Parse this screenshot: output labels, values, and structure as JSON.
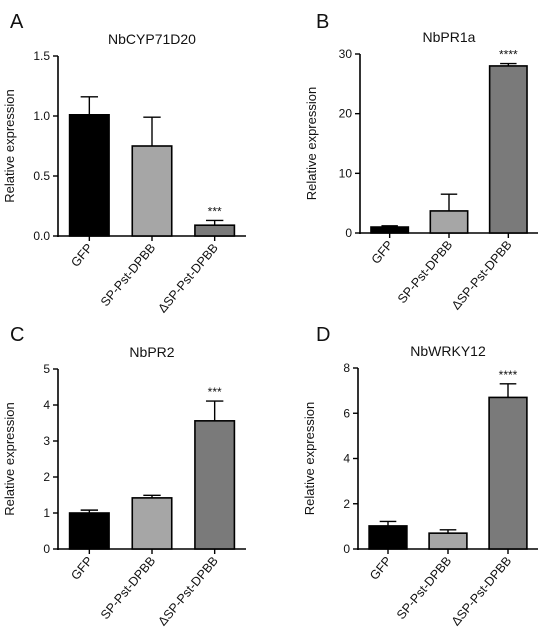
{
  "colors": {
    "GFP": "#000000",
    "SP-Pst-DPBB": "#a6a6a6",
    "ΔSP-Pst-DPBB": "#7a7a7a",
    "axis": "#000000"
  },
  "chart_data": [
    {
      "panel": "A",
      "type": "bar",
      "title": "NbCYP71D20",
      "ylabel": "Relative expression",
      "xlabel": "",
      "categories": [
        "GFP",
        "SP-Pst-DPBB",
        "ΔSP-Pst-DPBB"
      ],
      "values": [
        1.01,
        0.75,
        0.09
      ],
      "errors": [
        0.15,
        0.24,
        0.04
      ],
      "significance": [
        "",
        "",
        "***"
      ],
      "ylim": [
        0,
        1.5
      ],
      "yticks": [
        "0.0",
        "0.5",
        "1.0",
        "1.5"
      ],
      "grid": false
    },
    {
      "panel": "B",
      "type": "bar",
      "title": "NbPR1a",
      "ylabel": "Relative expression",
      "xlabel": "",
      "categories": [
        "GFP",
        "SP-Pst-DPBB",
        "ΔSP-Pst-DPBB"
      ],
      "values": [
        1.0,
        3.7,
        28.0
      ],
      "errors": [
        0.2,
        2.8,
        0.4
      ],
      "significance": [
        "",
        "",
        "****"
      ],
      "ylim": [
        0,
        30
      ],
      "yticks": [
        "0",
        "10",
        "20",
        "30"
      ],
      "grid": false
    },
    {
      "panel": "C",
      "type": "bar",
      "title": "NbPR2",
      "ylabel": "Relative expression",
      "xlabel": "",
      "categories": [
        "GFP",
        "SP-Pst-DPBB",
        "ΔSP-Pst-DPBB"
      ],
      "values": [
        1.0,
        1.42,
        3.56
      ],
      "errors": [
        0.08,
        0.07,
        0.55
      ],
      "significance": [
        "",
        "",
        "***"
      ],
      "ylim": [
        0,
        5
      ],
      "yticks": [
        "0",
        "1",
        "2",
        "3",
        "4",
        "5"
      ],
      "grid": false
    },
    {
      "panel": "D",
      "type": "bar",
      "title": "NbWRKY12",
      "ylabel": "Relative expression",
      "xlabel": "",
      "categories": [
        "GFP",
        "SP-Pst-DPBB",
        "ΔSP-Pst-DPBB"
      ],
      "values": [
        1.02,
        0.7,
        6.7
      ],
      "errors": [
        0.2,
        0.15,
        0.6
      ],
      "significance": [
        "",
        "",
        "****"
      ],
      "ylim": [
        0,
        8
      ],
      "yticks": [
        "0",
        "2",
        "4",
        "6",
        "8"
      ],
      "grid": false
    }
  ]
}
